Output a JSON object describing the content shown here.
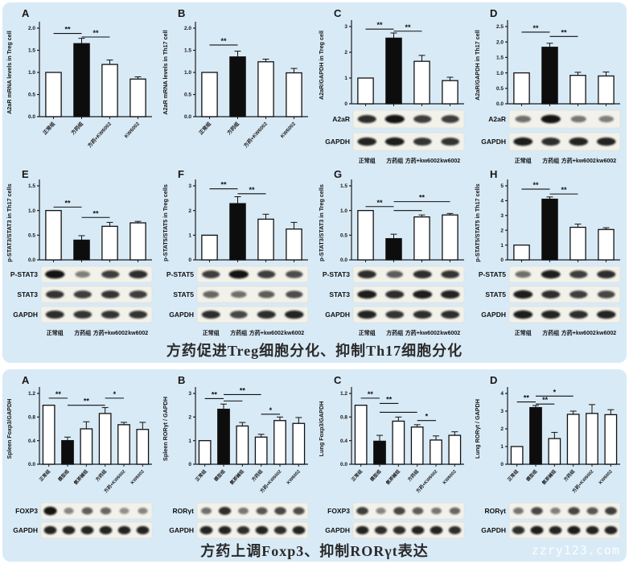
{
  "page": {
    "watermark": "zzry123.com",
    "bg": "#ffffff",
    "card_bg": "#d8eaf6",
    "caption_color": "#2a2a2a",
    "bar_black": "#0d0d0d",
    "bar_white": "#ffffff",
    "axis_color": "#1c1c1c"
  },
  "sections": [
    {
      "caption": "方药促进Treg细胞分化、抑制Th17细胞分化"
    },
    {
      "caption": "方药上调Foxp3、抑制RORγt表达"
    }
  ],
  "group_sets": {
    "groups4": [
      "正常组",
      "方药组",
      "方药+KW6002",
      "KW6002"
    ],
    "lanes4": [
      "正常组",
      "方药组",
      "方药+kw6002",
      "kw6002"
    ],
    "groups6": [
      "正常组",
      "模型组",
      "氨茶碱组",
      "方药组",
      "方药+KW6002",
      "KW6002"
    ]
  },
  "chart_data": [
    {
      "id": "A",
      "letter": "A",
      "type": "bar",
      "title": "",
      "xlabel": "",
      "ylabel": "A2aR mRNA levels in Treg cell",
      "ylim": [
        0,
        2
      ],
      "yticks": [
        0,
        0.5,
        1,
        1.5,
        2
      ],
      "tick_decimals": 1,
      "categories": "groups4",
      "rotated_labels": true,
      "lane_labels": null,
      "values": [
        1.0,
        1.65,
        1.18,
        0.85
      ],
      "errors": [
        0,
        0.12,
        0.1,
        0.05
      ],
      "black_bars": [
        1
      ],
      "sig": [
        {
          "a": 0,
          "b": 1,
          "label": "**",
          "y": 1.88
        },
        {
          "a": 1,
          "b": 2,
          "label": "**",
          "y": 1.8
        }
      ],
      "blots": []
    },
    {
      "id": "B",
      "letter": "B",
      "type": "bar",
      "title": "",
      "xlabel": "",
      "ylabel": "A2aR mRNA levels in Th17 cell",
      "ylim": [
        0,
        2
      ],
      "yticks": [
        0,
        0.5,
        1,
        1.5,
        2
      ],
      "tick_decimals": 1,
      "categories": "groups4",
      "rotated_labels": true,
      "lane_labels": null,
      "values": [
        1.0,
        1.35,
        1.24,
        0.99
      ],
      "errors": [
        0,
        0.13,
        0.06,
        0.1
      ],
      "black_bars": [
        1
      ],
      "sig": [
        {
          "a": 0,
          "b": 1,
          "label": "**",
          "y": 1.62
        }
      ],
      "blots": []
    },
    {
      "id": "C",
      "letter": "C",
      "type": "bar",
      "title": "",
      "xlabel": "",
      "ylabel": "A2aR/GAPDH in Treg cell",
      "ylim": [
        0,
        3
      ],
      "yticks": [
        0,
        1,
        2,
        3
      ],
      "tick_decimals": 0,
      "categories": "groups4",
      "rotated_labels": false,
      "lane_labels": "lanes4",
      "values": [
        1.0,
        2.55,
        1.65,
        0.9
      ],
      "errors": [
        0,
        0.2,
        0.23,
        0.13
      ],
      "black_bars": [
        1
      ],
      "sig": [
        {
          "a": 0,
          "b": 1,
          "label": "**",
          "y": 2.9
        },
        {
          "a": 1,
          "b": 2,
          "label": "**",
          "y": 2.82
        }
      ],
      "blots": [
        {
          "label": "A2aR",
          "bands": [
            0.85,
            1.0,
            0.75,
            0.75
          ]
        },
        {
          "label": "GAPDH",
          "bands": [
            0.9,
            0.95,
            0.8,
            0.8
          ]
        }
      ]
    },
    {
      "id": "D",
      "letter": "D",
      "type": "bar",
      "title": "",
      "xlabel": "",
      "ylabel": "A2aR/GAPDH in Th17 cell",
      "ylim": [
        0,
        2.5
      ],
      "yticks": [
        0,
        0.5,
        1,
        1.5,
        2,
        2.5
      ],
      "tick_decimals": 1,
      "categories": "groups4",
      "rotated_labels": false,
      "lane_labels": "lanes4",
      "values": [
        1.0,
        1.83,
        0.92,
        0.9
      ],
      "errors": [
        0,
        0.13,
        0.1,
        0.13
      ],
      "black_bars": [
        1
      ],
      "sig": [
        {
          "a": 0,
          "b": 1,
          "label": "**",
          "y": 2.32
        },
        {
          "a": 1,
          "b": 2,
          "label": "**",
          "y": 2.18
        }
      ],
      "blots": [
        {
          "label": "A2aR",
          "bands": [
            0.45,
            1.0,
            0.4,
            0.35
          ]
        },
        {
          "label": "GAPDH",
          "bands": [
            0.95,
            0.85,
            0.9,
            0.9
          ]
        }
      ]
    },
    {
      "id": "E",
      "letter": "E",
      "type": "bar",
      "title": "",
      "xlabel": "",
      "ylabel": "p-STAT3/STAT3 in Th17 cells",
      "ylim": [
        0,
        1.5
      ],
      "yticks": [
        0,
        0.5,
        1,
        1.5
      ],
      "tick_decimals": 1,
      "categories": "groups4",
      "rotated_labels": false,
      "lane_labels": "lanes4",
      "values": [
        1.0,
        0.4,
        0.68,
        0.75
      ],
      "errors": [
        0,
        0.09,
        0.08,
        0.03
      ],
      "black_bars": [
        1
      ],
      "sig": [
        {
          "a": 0,
          "b": 1,
          "label": "**",
          "y": 1.07
        },
        {
          "a": 1,
          "b": 2,
          "label": "**",
          "y": 0.86
        }
      ],
      "blots": [
        {
          "label": "P-STAT3",
          "bands": [
            1.0,
            0.35,
            0.75,
            0.85
          ]
        },
        {
          "label": "STAT3",
          "bands": [
            0.8,
            0.75,
            0.8,
            0.75
          ]
        },
        {
          "label": "GAPDH",
          "bands": [
            0.85,
            0.8,
            0.8,
            0.8
          ]
        }
      ]
    },
    {
      "id": "F",
      "letter": "F",
      "type": "bar",
      "title": "",
      "xlabel": "",
      "ylabel": "p-STAT5/STAT5 in Treg cells",
      "ylim": [
        0,
        3
      ],
      "yticks": [
        0,
        1,
        2,
        3
      ],
      "tick_decimals": 0,
      "categories": "groups4",
      "rotated_labels": false,
      "lane_labels": "lanes4",
      "values": [
        1.0,
        2.28,
        1.65,
        1.25
      ],
      "errors": [
        0,
        0.28,
        0.2,
        0.27
      ],
      "black_bars": [
        1
      ],
      "sig": [
        {
          "a": 0,
          "b": 1,
          "label": "**",
          "y": 2.88
        },
        {
          "a": 1,
          "b": 2,
          "label": "**",
          "y": 2.68
        }
      ],
      "blots": [
        {
          "label": "P-STAT5",
          "bands": [
            0.75,
            1.0,
            0.75,
            0.65
          ]
        },
        {
          "label": "STAT5",
          "bands": [
            0.5,
            0.45,
            0.55,
            0.65
          ]
        },
        {
          "label": "GAPDH",
          "bands": [
            0.85,
            0.7,
            0.85,
            0.9
          ]
        }
      ]
    },
    {
      "id": "G",
      "letter": "G",
      "type": "bar",
      "title": "",
      "xlabel": "",
      "ylabel": "p-STAT3/STAT3 in Treg cells",
      "ylim": [
        0,
        1.5
      ],
      "yticks": [
        0,
        0.5,
        1,
        1.5
      ],
      "tick_decimals": 1,
      "categories": "groups4",
      "rotated_labels": false,
      "lane_labels": "lanes4",
      "values": [
        1.0,
        0.43,
        0.87,
        0.91
      ],
      "errors": [
        0,
        0.09,
        0.04,
        0.03
      ],
      "black_bars": [
        1
      ],
      "sig": [
        {
          "a": 0,
          "b": 1,
          "label": "**",
          "y": 1.08
        },
        {
          "a": 1,
          "b": 2,
          "label": "",
          "y": 1.0
        },
        {
          "a": 1,
          "b": 3,
          "label": "**",
          "y": 1.18
        }
      ],
      "blots": [
        {
          "label": "P-STAT3",
          "bands": [
            0.85,
            0.55,
            0.85,
            0.8
          ]
        },
        {
          "label": "STAT3",
          "bands": [
            0.95,
            0.85,
            0.95,
            0.9
          ]
        },
        {
          "label": "GAPDH",
          "bands": [
            0.9,
            0.8,
            0.85,
            0.85
          ]
        }
      ]
    },
    {
      "id": "H",
      "letter": "H",
      "type": "bar",
      "title": "",
      "xlabel": "",
      "ylabel": "p-STAT5/STAT5 in Th17 cells",
      "ylim": [
        0,
        5
      ],
      "yticks": [
        0,
        1,
        2,
        3,
        4,
        5
      ],
      "tick_decimals": 0,
      "categories": "groups4",
      "rotated_labels": false,
      "lane_labels": "lanes4",
      "values": [
        1.0,
        4.1,
        2.2,
        2.05
      ],
      "errors": [
        0,
        0.15,
        0.22,
        0.12
      ],
      "black_bars": [
        1
      ],
      "sig": [
        {
          "a": 0,
          "b": 1,
          "label": "**",
          "y": 4.78
        },
        {
          "a": 1,
          "b": 2,
          "label": "**",
          "y": 4.45
        }
      ],
      "blots": [
        {
          "label": "P-STAT5",
          "bands": [
            0.45,
            0.95,
            0.75,
            0.85
          ]
        },
        {
          "label": "STAT5",
          "bands": [
            0.95,
            0.85,
            0.75,
            0.7
          ]
        },
        {
          "label": "GAPDH",
          "bands": [
            0.95,
            0.9,
            0.85,
            0.9
          ]
        }
      ]
    },
    {
      "id": "A2",
      "letter": "A",
      "type": "bar",
      "title": "",
      "xlabel": "",
      "ylabel": "Spleen Foxp3/GAPDH",
      "ylim": [
        0,
        1.2
      ],
      "yticks": [
        0,
        0.4,
        0.8,
        1.2
      ],
      "tick_decimals": 1,
      "categories": "groups6",
      "rotated_labels": true,
      "lane_labels": null,
      "values": [
        1.0,
        0.4,
        0.6,
        0.86,
        0.67,
        0.59
      ],
      "errors": [
        0,
        0.06,
        0.12,
        0.1,
        0.04,
        0.12
      ],
      "black_bars": [
        1
      ],
      "sig": [
        {
          "a": 0,
          "b": 1,
          "label": "**",
          "y": 1.12
        },
        {
          "a": 1,
          "b": 3,
          "label": "**",
          "y": 1.0
        },
        {
          "a": 3,
          "b": 4,
          "label": "*",
          "y": 1.12
        }
      ],
      "blots": [
        {
          "label": "FOXP3",
          "bands": [
            1.0,
            0.3,
            0.55,
            0.5,
            0.25,
            0.3
          ]
        },
        {
          "label": "GAPDH",
          "bands": [
            0.9,
            0.9,
            0.9,
            0.9,
            0.9,
            0.9
          ]
        }
      ]
    },
    {
      "id": "B2",
      "letter": "B",
      "type": "bar",
      "title": "",
      "xlabel": "",
      "ylabel": "Spleen RORγt / GAPDH",
      "ylim": [
        0,
        3
      ],
      "yticks": [
        0,
        1,
        2,
        3
      ],
      "tick_decimals": 0,
      "categories": "groups6",
      "rotated_labels": true,
      "lane_labels": null,
      "values": [
        1.0,
        2.33,
        1.62,
        1.15,
        1.85,
        1.73
      ],
      "errors": [
        0,
        0.22,
        0.15,
        0.12,
        0.15,
        0.25
      ],
      "black_bars": [
        1
      ],
      "sig": [
        {
          "a": 0,
          "b": 1,
          "label": "**",
          "y": 2.78
        },
        {
          "a": 1,
          "b": 2,
          "label": "",
          "y": 2.68
        },
        {
          "a": 1,
          "b": 3,
          "label": "**",
          "y": 2.95
        },
        {
          "a": 3,
          "b": 4,
          "label": "*",
          "y": 2.12
        }
      ],
      "blots": [
        {
          "label": "RORγt",
          "bands": [
            0.45,
            0.85,
            0.4,
            0.6,
            0.7,
            0.65
          ]
        },
        {
          "label": "GAPDH",
          "bands": [
            0.9,
            0.9,
            0.85,
            0.9,
            0.85,
            0.9
          ]
        }
      ]
    },
    {
      "id": "C2",
      "letter": "C",
      "type": "bar",
      "title": "",
      "xlabel": "",
      "ylabel": "Lung Foxp3/GAPDH",
      "ylim": [
        0,
        1.2
      ],
      "yticks": [
        0,
        0.4,
        0.8,
        1.2
      ],
      "tick_decimals": 1,
      "categories": "groups6",
      "rotated_labels": true,
      "lane_labels": null,
      "values": [
        1.0,
        0.39,
        0.73,
        0.63,
        0.41,
        0.49
      ],
      "errors": [
        0,
        0.1,
        0.07,
        0.04,
        0.07,
        0.06
      ],
      "black_bars": [
        1
      ],
      "sig": [
        {
          "a": 0,
          "b": 1,
          "label": "**",
          "y": 1.12
        },
        {
          "a": 1,
          "b": 2,
          "label": "**",
          "y": 1.03
        },
        {
          "a": 1,
          "b": 3,
          "label": "",
          "y": 0.88
        },
        {
          "a": 3,
          "b": 4,
          "label": "*",
          "y": 0.74
        }
      ],
      "blots": [
        {
          "label": "FOXP3",
          "bands": [
            0.75,
            0.3,
            0.7,
            0.55,
            0.4,
            0.5
          ]
        },
        {
          "label": "GAPDH",
          "bands": [
            0.9,
            0.85,
            0.85,
            0.9,
            0.9,
            0.85
          ]
        }
      ]
    },
    {
      "id": "D2",
      "letter": "D",
      "type": "bar",
      "title": "",
      "xlabel": "",
      "ylabel": "Lung RORγt / GAPDH",
      "ylim": [
        0,
        4
      ],
      "yticks": [
        0,
        1,
        2,
        3,
        4
      ],
      "tick_decimals": 0,
      "categories": "groups6",
      "rotated_labels": true,
      "lane_labels": null,
      "values": [
        1.0,
        3.2,
        1.45,
        2.82,
        2.87,
        2.8
      ],
      "errors": [
        0,
        0.12,
        0.35,
        0.18,
        0.5,
        0.28
      ],
      "black_bars": [
        1
      ],
      "sig": [
        {
          "a": 0,
          "b": 1,
          "label": "**",
          "y": 3.52
        },
        {
          "a": 1,
          "b": 2,
          "label": "**",
          "y": 3.4
        },
        {
          "a": 1,
          "b": 3,
          "label": "*",
          "y": 3.85
        }
      ],
      "blots": [
        {
          "label": "RORγt",
          "bands": [
            0.4,
            0.7,
            0.35,
            0.7,
            0.6,
            0.75
          ]
        },
        {
          "label": "GAPDH",
          "bands": [
            0.85,
            0.95,
            0.9,
            0.95,
            0.9,
            0.9
          ]
        }
      ]
    }
  ]
}
